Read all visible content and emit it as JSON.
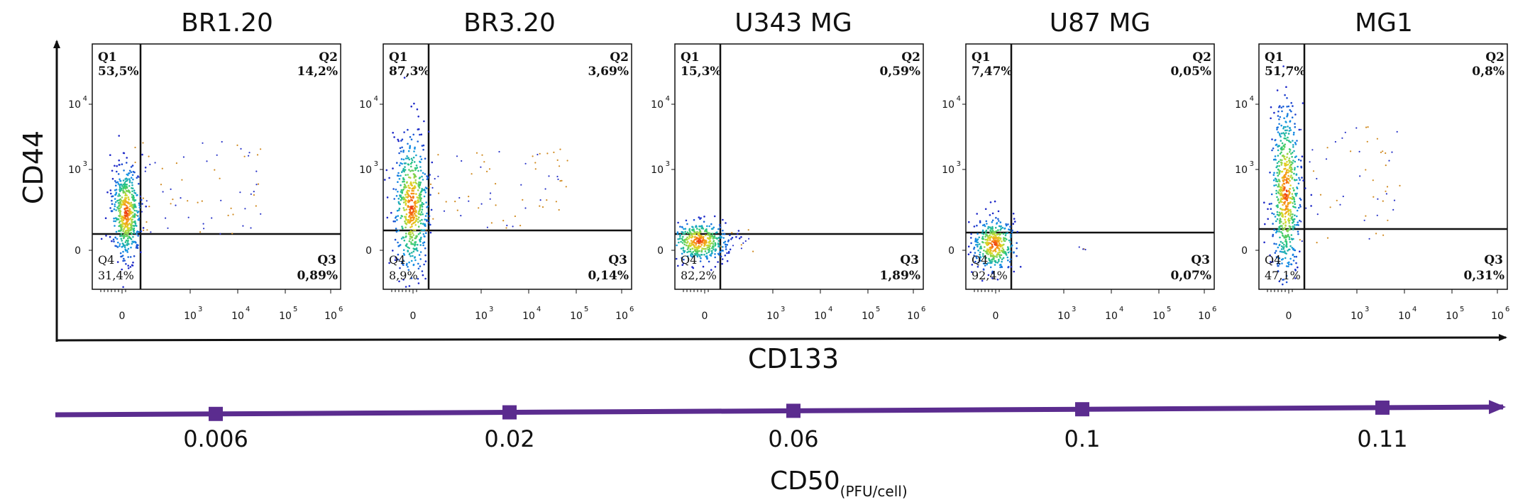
{
  "chart_data": [
    {
      "type": "scatter",
      "kind": "flow-cytometry-quadrant-panels",
      "xlabel": "CD133",
      "ylabel": "CD44",
      "x_ticks": [
        "0",
        "10",
        "10",
        "10",
        "10"
      ],
      "x_tick_exponents": [
        "",
        "3",
        "4",
        "5",
        "6"
      ],
      "y_ticks": [
        "0",
        "10",
        "10"
      ],
      "y_tick_exponents": [
        "",
        "3",
        "4"
      ],
      "panels": [
        {
          "title": "BR1.20",
          "quadrants": {
            "q1": {
              "label": "Q1",
              "pct": "53,5%"
            },
            "q2": {
              "label": "Q2",
              "pct": "14,2%"
            },
            "q3": {
              "label": "Q3",
              "pct": "0,89%"
            },
            "q4": {
              "label": "Q4",
              "pct": "31,4%"
            }
          }
        },
        {
          "title": "BR3.20",
          "quadrants": {
            "q1": {
              "label": "Q1",
              "pct": "87,3%"
            },
            "q2": {
              "label": "Q2",
              "pct": "3,69%"
            },
            "q3": {
              "label": "Q3",
              "pct": "0,14%"
            },
            "q4": {
              "label": "Q4",
              "pct": "8,9%"
            }
          }
        },
        {
          "title": "U343 MG",
          "quadrants": {
            "q1": {
              "label": "Q1",
              "pct": "15,3%"
            },
            "q2": {
              "label": "Q2",
              "pct": "0,59%"
            },
            "q3": {
              "label": "Q3",
              "pct": "1,89%"
            },
            "q4": {
              "label": "Q4",
              "pct": "82,2%"
            }
          }
        },
        {
          "title": "U87 MG",
          "quadrants": {
            "q1": {
              "label": "Q1",
              "pct": "7,47%"
            },
            "q2": {
              "label": "Q2",
              "pct": "0,05%"
            },
            "q3": {
              "label": "Q3",
              "pct": "0,07%"
            },
            "q4": {
              "label": "Q4",
              "pct": "92,4%"
            }
          }
        },
        {
          "title": "MG1",
          "quadrants": {
            "q1": {
              "label": "Q1",
              "pct": "51,7%"
            },
            "q2": {
              "label": "Q2",
              "pct": "0,8%"
            },
            "q3": {
              "label": "Q3",
              "pct": "0,31%"
            },
            "q4": {
              "label": "Q4",
              "pct": "47,1%"
            }
          }
        }
      ]
    },
    {
      "type": "line",
      "xlabel": "CD50",
      "xlabel_subscript": "(PFU/cell)",
      "categories": [
        "0.006",
        "0.02",
        "0.06",
        "0.1",
        "0.11"
      ],
      "values": [
        0.006,
        0.02,
        0.06,
        0.1,
        0.11
      ],
      "color": "#5b2c8f"
    }
  ]
}
